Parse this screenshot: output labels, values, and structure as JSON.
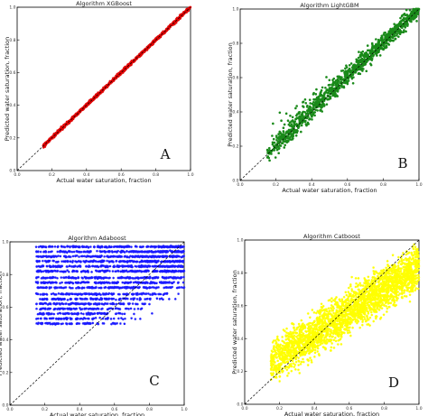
{
  "chart_data": [
    {
      "type": "scatter",
      "panel_letter": "A",
      "title": "Algorithm XGBoost",
      "xlabel": "Actual water saturation, fraction",
      "ylabel": "Predicted water saturation, fraction",
      "xlim": [
        0.0,
        1.0
      ],
      "ylim": [
        0.0,
        1.0
      ],
      "xticks": [
        "0.0",
        "0.2",
        "0.4",
        "0.6",
        "0.8",
        "1.0"
      ],
      "yticks": [
        "0.0",
        "0.2",
        "0.4",
        "0.6",
        "0.8",
        "1.0"
      ],
      "color": "#e00000",
      "marker": "star",
      "reference_line": "y = x (dashed)",
      "x_range": [
        0.15,
        1.0
      ],
      "pattern": "points lie tightly along y = x",
      "spread": 0.01,
      "grid": false
    },
    {
      "type": "scatter",
      "panel_letter": "B",
      "title": "Algorithm LightGBM",
      "xlabel": "Actual water saturation, fraction",
      "ylabel": "Predicted water saturation, fraction",
      "xlim": [
        0.0,
        1.0
      ],
      "ylim": [
        0.0,
        1.0
      ],
      "xticks": [
        "0.0",
        "0.2",
        "0.4",
        "0.6",
        "0.8",
        "1.0"
      ],
      "yticks": [
        "0.0",
        "0.2",
        "0.4",
        "0.6",
        "0.8",
        "1.0"
      ],
      "color": "#1a8a1a",
      "marker": "circle",
      "reference_line": "y = x (dashed)",
      "x_range": [
        0.15,
        1.0
      ],
      "pattern": "dense band along y = x with wider scatter above the line at mid values",
      "spread": 0.05,
      "grid": false
    },
    {
      "type": "scatter",
      "panel_letter": "C",
      "title": "Algorithm Adaboost",
      "xlabel": "Actual water saturation, fraction",
      "ylabel": "Predicted water saturation, fraction",
      "xlim": [
        0.0,
        1.0
      ],
      "ylim": [
        0.0,
        1.0
      ],
      "xticks": [
        "0.0",
        "0.2",
        "0.4",
        "0.6",
        "0.8",
        "1.0"
      ],
      "yticks": [
        "0.0",
        "0.2",
        "0.4",
        "0.6",
        "0.8",
        "1.0"
      ],
      "color": "#1a1aff",
      "marker": "star",
      "reference_line": "y = x (dashed)",
      "x_range": [
        0.15,
        1.0
      ],
      "pattern": "horizontal bands of predicted values between 0.5 and 0.97",
      "band_levels": [
        0.5,
        0.53,
        0.56,
        0.59,
        0.62,
        0.65,
        0.68,
        0.72,
        0.75,
        0.78,
        0.82,
        0.85,
        0.88,
        0.91,
        0.94,
        0.97
      ],
      "grid": false
    },
    {
      "type": "scatter",
      "panel_letter": "D",
      "title": "Algorithm Catboost",
      "xlabel": "Actual water saturation, fraction",
      "ylabel": "Predicted water saturation, fraction",
      "xlim": [
        0.0,
        1.0
      ],
      "ylim": [
        0.0,
        1.0
      ],
      "xticks": [
        "0.0",
        "0.2",
        "0.4",
        "0.6",
        "0.8",
        "1.0"
      ],
      "yticks": [
        "0.0",
        "0.2",
        "0.4",
        "0.6",
        "0.8",
        "1.0"
      ],
      "color": "#ffff00",
      "marker": "star",
      "reference_line": "y = x (dashed)",
      "x_range": [
        0.15,
        1.0
      ],
      "pattern": "broad cloud around y = x, overestimating low values and underestimating high values",
      "spread": 0.13,
      "grid": false
    }
  ]
}
